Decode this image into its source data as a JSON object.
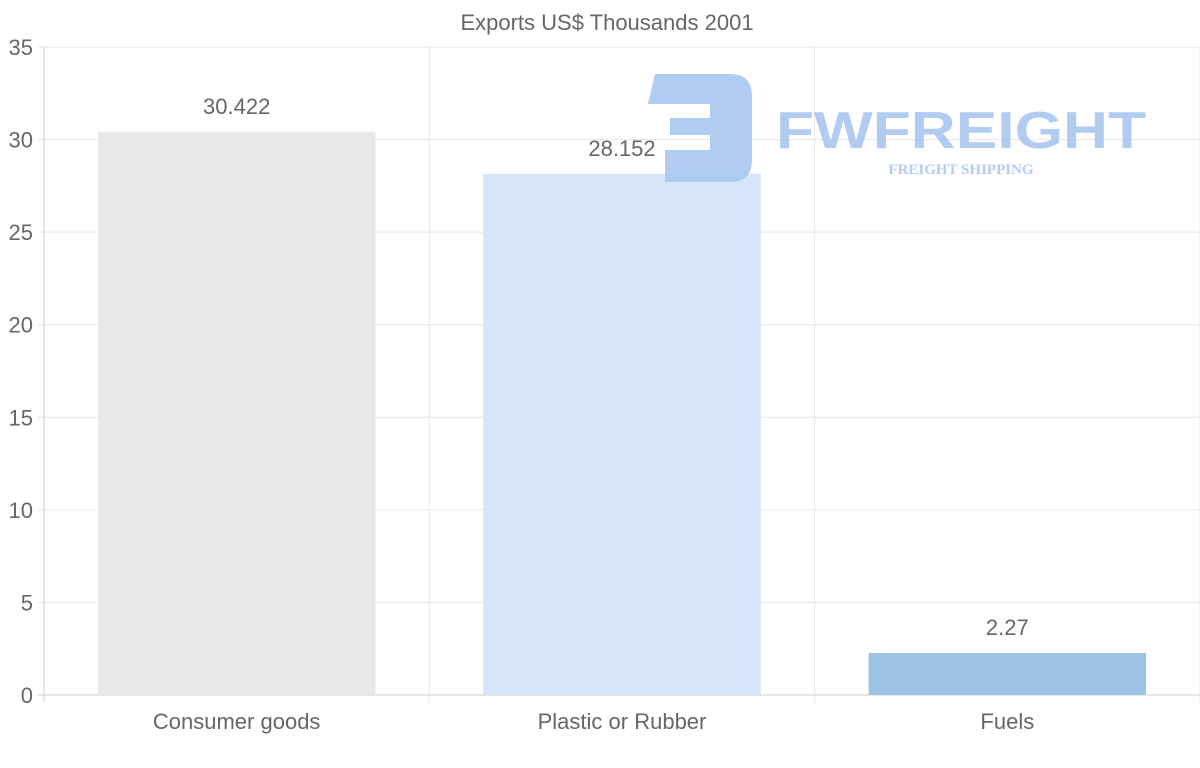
{
  "chart_data": {
    "type": "bar",
    "title": "Exports US$ Thousands 2001",
    "categories": [
      "Consumer goods",
      "Plastic or Rubber",
      "Fuels"
    ],
    "values": [
      30.422,
      28.152,
      2.27
    ],
    "data_labels": [
      "30.422",
      "28.152",
      "2.27"
    ],
    "colors": [
      "#e8e8e8",
      "#d6e6f8",
      "#9cc3e6"
    ],
    "xlabel": "",
    "ylabel": "",
    "ylim": [
      0,
      35
    ],
    "yticks": [
      0,
      5,
      10,
      15,
      20,
      25,
      30,
      35
    ],
    "grid": true,
    "legend": "none"
  },
  "watermark": {
    "brand": "FWFREIGHT",
    "tagline": "FREIGHT SHIPPING",
    "color": "#a9c6f0"
  }
}
